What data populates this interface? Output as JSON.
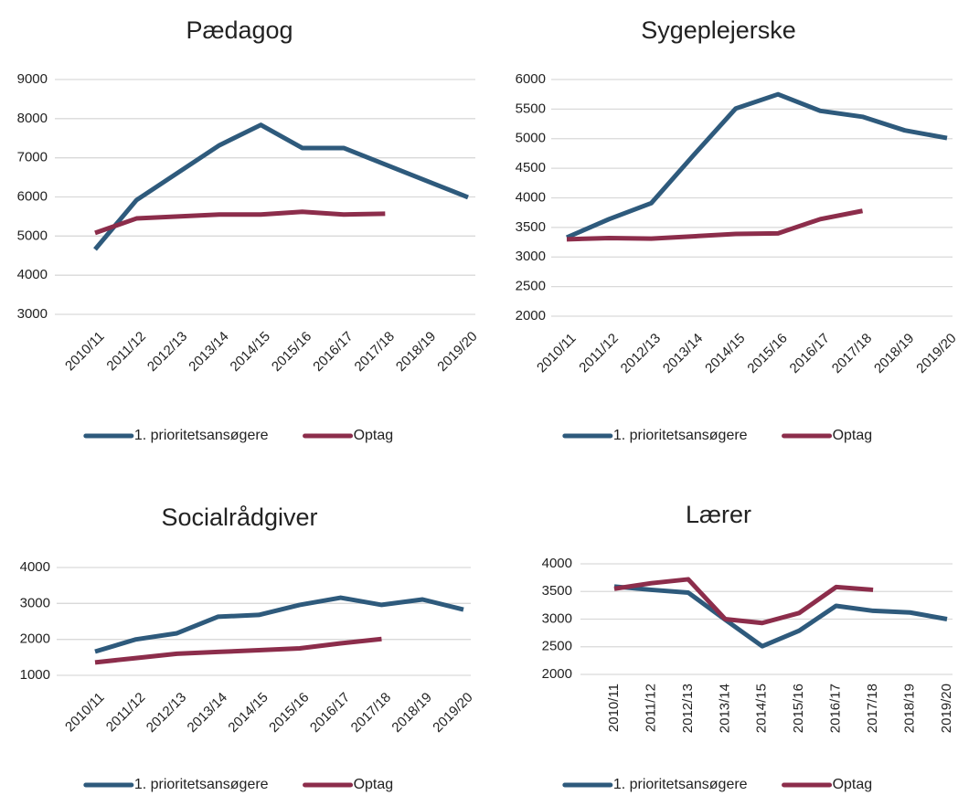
{
  "chart_data": [
    {
      "type": "line",
      "title": "Pædagog",
      "categories": [
        "2010/11",
        "2011/12",
        "2012/13",
        "2013/14",
        "2014/15",
        "2015/16",
        "2016/17",
        "2017/18",
        "2018/19",
        "2019/20"
      ],
      "series": [
        {
          "name": "1. prioritetsansøgere",
          "color": "#2e5a7c",
          "values": [
            4660,
            5920,
            6620,
            7320,
            7840,
            7250,
            7250,
            6830,
            6410,
            5990
          ]
        },
        {
          "name": "Optag",
          "color": "#8c2d4b",
          "values": [
            5080,
            5450,
            5500,
            5550,
            5550,
            5620,
            5550,
            5570,
            null,
            null
          ]
        }
      ],
      "ylim": [
        3000,
        9000
      ],
      "yticks": [
        3000,
        4000,
        5000,
        6000,
        7000,
        8000,
        9000
      ],
      "grid": true,
      "xtick_rotation": -45,
      "legend": "bottom"
    },
    {
      "type": "line",
      "title": "Sygeplejerske",
      "categories": [
        "2010/11",
        "2011/12",
        "2012/13",
        "2013/14",
        "2014/15",
        "2015/16",
        "2016/17",
        "2017/18",
        "2018/19",
        "2019/20"
      ],
      "series": [
        {
          "name": "1. prioritetsansøgere",
          "color": "#2e5a7c",
          "values": [
            3330,
            3640,
            3910,
            4720,
            5510,
            5750,
            5470,
            5370,
            5140,
            5010
          ]
        },
        {
          "name": "Optag",
          "color": "#8c2d4b",
          "values": [
            3300,
            3320,
            3310,
            3350,
            3390,
            3400,
            3640,
            3780,
            null,
            null
          ]
        }
      ],
      "ylim": [
        2000,
        6000
      ],
      "yticks": [
        2000,
        2500,
        3000,
        3500,
        4000,
        4500,
        5000,
        5500,
        6000
      ],
      "grid": true,
      "xtick_rotation": -45,
      "legend": "bottom"
    },
    {
      "type": "line",
      "title": "Socialrådgiver",
      "categories": [
        "2010/11",
        "2011/12",
        "2012/13",
        "2013/14",
        "2014/15",
        "2015/16",
        "2016/17",
        "2017/18",
        "2018/19",
        "2019/20"
      ],
      "series": [
        {
          "name": "1. prioritetsansøgere",
          "color": "#2e5a7c",
          "values": [
            1660,
            2000,
            2170,
            2630,
            2680,
            2960,
            3160,
            2960,
            3110,
            2830
          ]
        },
        {
          "name": "Optag",
          "color": "#8c2d4b",
          "values": [
            1360,
            1480,
            1600,
            1650,
            1700,
            1750,
            1890,
            2010,
            null,
            null
          ]
        }
      ],
      "ylim": [
        1000,
        4000
      ],
      "yticks": [
        1000,
        2000,
        3000,
        4000
      ],
      "grid": true,
      "xtick_rotation": -45,
      "legend": "bottom"
    },
    {
      "type": "line",
      "title": "Lærer",
      "categories": [
        "2010/11",
        "2011/12",
        "2012/13",
        "2013/14",
        "2014/15",
        "2015/16",
        "2016/17",
        "2017/18",
        "2018/19",
        "2019/20"
      ],
      "series": [
        {
          "name": "1. prioritetsansøgere",
          "color": "#2e5a7c",
          "values": [
            3590,
            3530,
            3480,
            2990,
            2510,
            2790,
            3240,
            3150,
            3120,
            3000
          ]
        },
        {
          "name": "Optag",
          "color": "#8c2d4b",
          "values": [
            3550,
            3650,
            3720,
            3000,
            2930,
            3110,
            3580,
            3530,
            null,
            null
          ]
        }
      ],
      "ylim": [
        2000,
        4000
      ],
      "yticks": [
        2000,
        2500,
        3000,
        3500,
        4000
      ],
      "grid": true,
      "xtick_rotation": -90,
      "legend": "bottom"
    }
  ]
}
